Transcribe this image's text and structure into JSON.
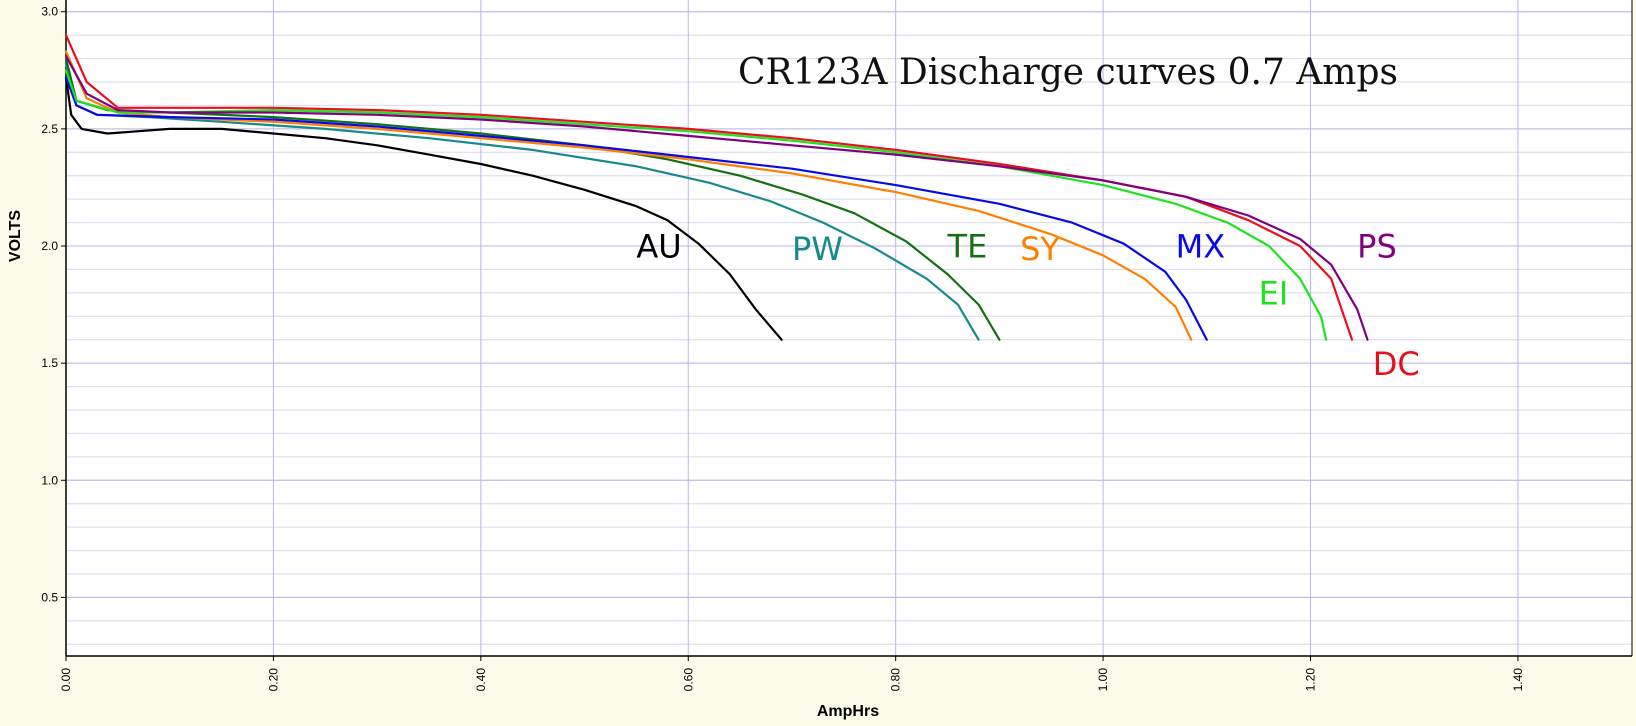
{
  "chart_data": {
    "type": "line",
    "title": "CR123A Discharge curves 0.7 Amps",
    "xlabel": "AmpHrs",
    "ylabel": "VOLTS",
    "xlim": [
      0,
      1.51
    ],
    "ylim": [
      0.25,
      3.05
    ],
    "xticks": [
      "0.00",
      "0.20",
      "0.40",
      "0.60",
      "0.80",
      "1.00",
      "1.20",
      "1.40"
    ],
    "yticks": [
      "0.5",
      "1.0",
      "1.5",
      "2.0",
      "2.5",
      "3.0"
    ],
    "grid": true,
    "legend": "inline labels next to curves",
    "series": [
      {
        "name": "AU",
        "color": "#000000",
        "points": [
          [
            0,
            2.72
          ],
          [
            0.005,
            2.56
          ],
          [
            0.015,
            2.5
          ],
          [
            0.04,
            2.48
          ],
          [
            0.07,
            2.49
          ],
          [
            0.1,
            2.5
          ],
          [
            0.15,
            2.5
          ],
          [
            0.2,
            2.48
          ],
          [
            0.25,
            2.46
          ],
          [
            0.3,
            2.43
          ],
          [
            0.35,
            2.39
          ],
          [
            0.4,
            2.35
          ],
          [
            0.45,
            2.3
          ],
          [
            0.5,
            2.24
          ],
          [
            0.55,
            2.17
          ],
          [
            0.58,
            2.11
          ],
          [
            0.61,
            2.01
          ],
          [
            0.64,
            1.88
          ],
          [
            0.665,
            1.73
          ],
          [
            0.69,
            1.6
          ]
        ]
      },
      {
        "name": "PW",
        "color": "#178a8a",
        "points": [
          [
            0,
            2.78
          ],
          [
            0.01,
            2.6
          ],
          [
            0.03,
            2.56
          ],
          [
            0.08,
            2.55
          ],
          [
            0.15,
            2.53
          ],
          [
            0.25,
            2.5
          ],
          [
            0.35,
            2.46
          ],
          [
            0.45,
            2.41
          ],
          [
            0.55,
            2.34
          ],
          [
            0.62,
            2.27
          ],
          [
            0.68,
            2.19
          ],
          [
            0.73,
            2.1
          ],
          [
            0.78,
            1.99
          ],
          [
            0.83,
            1.86
          ],
          [
            0.86,
            1.75
          ],
          [
            0.88,
            1.6
          ]
        ]
      },
      {
        "name": "TE",
        "color": "#137013",
        "points": [
          [
            0,
            2.8
          ],
          [
            0.01,
            2.62
          ],
          [
            0.04,
            2.58
          ],
          [
            0.1,
            2.57
          ],
          [
            0.2,
            2.55
          ],
          [
            0.3,
            2.52
          ],
          [
            0.4,
            2.48
          ],
          [
            0.5,
            2.43
          ],
          [
            0.58,
            2.37
          ],
          [
            0.65,
            2.3
          ],
          [
            0.71,
            2.22
          ],
          [
            0.76,
            2.14
          ],
          [
            0.81,
            2.02
          ],
          [
            0.85,
            1.88
          ],
          [
            0.88,
            1.75
          ],
          [
            0.9,
            1.6
          ]
        ]
      },
      {
        "name": "SY",
        "color": "#ff8000",
        "points": [
          [
            0,
            2.83
          ],
          [
            0.02,
            2.63
          ],
          [
            0.05,
            2.57
          ],
          [
            0.1,
            2.55
          ],
          [
            0.2,
            2.53
          ],
          [
            0.3,
            2.5
          ],
          [
            0.4,
            2.46
          ],
          [
            0.5,
            2.42
          ],
          [
            0.6,
            2.37
          ],
          [
            0.7,
            2.31
          ],
          [
            0.8,
            2.23
          ],
          [
            0.88,
            2.15
          ],
          [
            0.95,
            2.05
          ],
          [
            1.0,
            1.96
          ],
          [
            1.04,
            1.86
          ],
          [
            1.07,
            1.74
          ],
          [
            1.085,
            1.6
          ]
        ]
      },
      {
        "name": "MX",
        "color": "#0a0ae8",
        "points": [
          [
            0,
            2.72
          ],
          [
            0.01,
            2.6
          ],
          [
            0.03,
            2.56
          ],
          [
            0.1,
            2.55
          ],
          [
            0.2,
            2.54
          ],
          [
            0.3,
            2.51
          ],
          [
            0.4,
            2.47
          ],
          [
            0.5,
            2.43
          ],
          [
            0.6,
            2.38
          ],
          [
            0.7,
            2.33
          ],
          [
            0.8,
            2.26
          ],
          [
            0.9,
            2.18
          ],
          [
            0.97,
            2.1
          ],
          [
            1.02,
            2.01
          ],
          [
            1.06,
            1.89
          ],
          [
            1.08,
            1.77
          ],
          [
            1.1,
            1.6
          ]
        ]
      },
      {
        "name": "EI",
        "color": "#1ee31e",
        "points": [
          [
            0,
            2.75
          ],
          [
            0.01,
            2.62
          ],
          [
            0.05,
            2.57
          ],
          [
            0.1,
            2.57
          ],
          [
            0.2,
            2.58
          ],
          [
            0.3,
            2.57
          ],
          [
            0.4,
            2.55
          ],
          [
            0.5,
            2.52
          ],
          [
            0.6,
            2.49
          ],
          [
            0.7,
            2.45
          ],
          [
            0.8,
            2.4
          ],
          [
            0.9,
            2.34
          ],
          [
            1.0,
            2.26
          ],
          [
            1.07,
            2.18
          ],
          [
            1.12,
            2.1
          ],
          [
            1.16,
            2.0
          ],
          [
            1.19,
            1.86
          ],
          [
            1.21,
            1.7
          ],
          [
            1.215,
            1.6
          ]
        ]
      },
      {
        "name": "DC",
        "color": "#e8101e",
        "points": [
          [
            0,
            2.9
          ],
          [
            0.02,
            2.7
          ],
          [
            0.05,
            2.59
          ],
          [
            0.1,
            2.59
          ],
          [
            0.2,
            2.59
          ],
          [
            0.3,
            2.58
          ],
          [
            0.4,
            2.56
          ],
          [
            0.5,
            2.53
          ],
          [
            0.6,
            2.5
          ],
          [
            0.7,
            2.46
          ],
          [
            0.8,
            2.41
          ],
          [
            0.9,
            2.35
          ],
          [
            1.0,
            2.28
          ],
          [
            1.08,
            2.21
          ],
          [
            1.14,
            2.11
          ],
          [
            1.19,
            2.0
          ],
          [
            1.22,
            1.86
          ],
          [
            1.24,
            1.6
          ]
        ]
      },
      {
        "name": "PS",
        "color": "#800080",
        "points": [
          [
            0,
            2.81
          ],
          [
            0.02,
            2.65
          ],
          [
            0.05,
            2.58
          ],
          [
            0.1,
            2.57
          ],
          [
            0.2,
            2.57
          ],
          [
            0.3,
            2.56
          ],
          [
            0.4,
            2.54
          ],
          [
            0.5,
            2.51
          ],
          [
            0.6,
            2.47
          ],
          [
            0.7,
            2.43
          ],
          [
            0.8,
            2.39
          ],
          [
            0.9,
            2.34
          ],
          [
            1.0,
            2.28
          ],
          [
            1.08,
            2.21
          ],
          [
            1.14,
            2.13
          ],
          [
            1.19,
            2.03
          ],
          [
            1.22,
            1.92
          ],
          [
            1.245,
            1.73
          ],
          [
            1.255,
            1.6
          ]
        ]
      }
    ],
    "annotations": [
      {
        "text": "AU",
        "x": 0.55,
        "y": 1.95,
        "color": "#000000"
      },
      {
        "text": "PW",
        "x": 0.7,
        "y": 1.94,
        "color": "#178a8a"
      },
      {
        "text": "TE",
        "x": 0.85,
        "y": 1.95,
        "color": "#137013"
      },
      {
        "text": "SY",
        "x": 0.92,
        "y": 1.94,
        "color": "#ff8000"
      },
      {
        "text": "MX",
        "x": 1.07,
        "y": 1.95,
        "color": "#0a0ae8"
      },
      {
        "text": "EI",
        "x": 1.15,
        "y": 1.75,
        "color": "#1ee31e"
      },
      {
        "text": "PS",
        "x": 1.245,
        "y": 1.95,
        "color": "#800080"
      },
      {
        "text": "DC",
        "x": 1.26,
        "y": 1.45,
        "color": "#e8101e"
      }
    ]
  }
}
